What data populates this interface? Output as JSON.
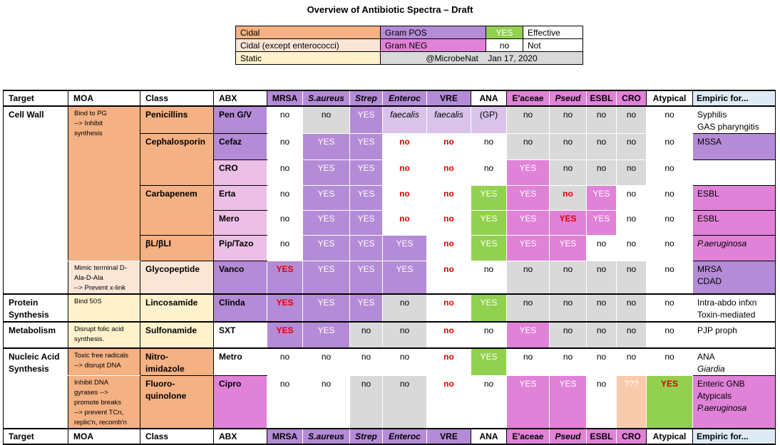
{
  "title": "Overview of Antibiotic Spectra – Draft",
  "colors": {
    "cidal": "#f4b183",
    "cidal_except_enterococci": "#fbe5d6",
    "static": "#fff2cc",
    "gram_pos": "#b48bd6",
    "gram_pos_light": "#d9c3ea",
    "gram_neg": "#e082d8",
    "gram_neg_light": "#ecbfe6",
    "effective": "#92d050",
    "grey": "#d9d9d9",
    "peach": "#f8cbad",
    "header_empiric": "#deebf7",
    "red_text": "#e00000"
  },
  "legend": {
    "cidal": "Cidal",
    "cidal_except": "Cidal (except enterococci)",
    "static": "Static",
    "gram_pos": "Gram POS",
    "gram_neg": "Gram NEG",
    "yes": "YES",
    "effective": "Effective",
    "no": "no",
    "not": "Not",
    "handle": "@MicrobeNat",
    "date": "Jan 17, 2020"
  },
  "headers": [
    {
      "label": "Target",
      "cls": "l"
    },
    {
      "label": "MOA",
      "cls": "l"
    },
    {
      "label": "Class",
      "cls": "l"
    },
    {
      "label": "ABX",
      "cls": "l"
    },
    {
      "label": "MRSA",
      "cls": "ctr",
      "bg": "gram_pos"
    },
    {
      "label": "S.aureus",
      "cls": "ctr it",
      "bg": "gram_pos"
    },
    {
      "label": "Strep",
      "cls": "ctr it",
      "bg": "gram_pos"
    },
    {
      "label": "Enteroc",
      "cls": "ctr it",
      "bg": "gram_pos"
    },
    {
      "label": "VRE",
      "cls": "ctr",
      "bg": "gram_pos"
    },
    {
      "label": "ANA",
      "cls": "ctr"
    },
    {
      "label": "E'aceae",
      "cls": "ctr",
      "bg": "gram_neg"
    },
    {
      "label": "Pseud",
      "cls": "ctr it",
      "bg": "gram_neg"
    },
    {
      "label": "ESBL",
      "cls": "ctr",
      "bg": "gram_neg"
    },
    {
      "label": "CRO",
      "cls": "ctr",
      "bg": "gram_neg"
    },
    {
      "label": "Atypical",
      "cls": "ctr"
    },
    {
      "label": "Empiric for...",
      "cls": "l last"
    }
  ],
  "targets": {
    "cell_wall": [
      "Cell Wall"
    ],
    "protein": [
      "Protein",
      "Synthesis"
    ],
    "metabolism": [
      "Metabolism"
    ],
    "nucleic": [
      "Nucleic Acid",
      "Synthesis"
    ]
  },
  "moa": {
    "bind_pg": [
      "Bind to PG",
      "--> Inhibit",
      "synthesis"
    ],
    "mimic": [
      "Mimic terminal D-",
      "Ala-D-Ala",
      "--> Prevent x-link"
    ],
    "bind_50s": [
      "Bind 50S"
    ],
    "folic": [
      "Disrupt folic acid",
      "synthesis."
    ],
    "toxic": [
      "Toxic free radicals",
      "--> disrupt DNA"
    ],
    "gyrase": [
      "Inhibit DNA",
      "gyrases -->",
      "promote breaks",
      "--> prevent TCn,",
      "replic'n, recomb'n"
    ]
  },
  "classes": {
    "penicillins": [
      "Penicillins"
    ],
    "cephalosporin": [
      "Cephalosporin"
    ],
    "carbapenem": [
      "Carbapenem"
    ],
    "bl_bli": [
      "βL/βLI"
    ],
    "glycopeptide": [
      "Glycopeptide"
    ],
    "lincosamide": [
      "Lincosamide"
    ],
    "sulfonamide": [
      "Sulfonamide"
    ],
    "nitroimidazole": [
      "Nitro-",
      "imidazole"
    ],
    "fluoroquinolone": [
      "Fluoro-",
      "quinolone"
    ]
  },
  "rows": [
    {
      "abx": "Pen G/V",
      "abx_bg": "gram_pos",
      "cells": [
        [
          "no",
          "white"
        ],
        [
          "no",
          "grey"
        ],
        [
          "YES",
          "gram_pos"
        ],
        [
          "faecalis",
          "gram_pos_light",
          "it"
        ],
        [
          "faecalis",
          "gram_pos_light",
          "it"
        ],
        [
          "(GP)",
          "gram_pos_light"
        ],
        [
          "no",
          "grey"
        ],
        [
          "no",
          "grey"
        ],
        [
          "no",
          "grey"
        ],
        [
          "no",
          "grey"
        ],
        [
          "no",
          "white"
        ]
      ],
      "empiric": [
        [
          "Syphilis"
        ],
        [
          "GAS pharyngitis"
        ]
      ],
      "emp_bg": "white"
    },
    {
      "abx": "Cefaz",
      "abx_bg": "gram_pos",
      "cells": [
        [
          "no",
          "white"
        ],
        [
          "YES",
          "gram_pos"
        ],
        [
          "YES",
          "gram_pos"
        ],
        [
          "no",
          "white",
          "red"
        ],
        [
          "no",
          "white",
          "red"
        ],
        [
          "no",
          "white"
        ],
        [
          "no",
          "grey"
        ],
        [
          "no",
          "grey"
        ],
        [
          "no",
          "grey"
        ],
        [
          "no",
          "grey"
        ],
        [
          "no",
          "white"
        ]
      ],
      "empiric": [
        [
          "MSSA"
        ]
      ],
      "emp_bg": "gram_pos"
    },
    {
      "abx": "CRO",
      "abx_bg": "gram_neg_light",
      "cells": [
        [
          "no",
          "white"
        ],
        [
          "YES",
          "gram_pos"
        ],
        [
          "YES",
          "gram_pos"
        ],
        [
          "no",
          "white",
          "red"
        ],
        [
          "no",
          "white",
          "red"
        ],
        [
          "no",
          "white"
        ],
        [
          "YES",
          "gram_neg"
        ],
        [
          "no",
          "grey"
        ],
        [
          "no",
          "grey"
        ],
        [
          "no",
          "grey"
        ],
        [
          "no",
          "white"
        ]
      ],
      "empiric": [],
      "emp_bg": "white"
    },
    {
      "abx": "Erta",
      "abx_bg": "gram_neg_light",
      "cells": [
        [
          "no",
          "white"
        ],
        [
          "YES",
          "gram_pos"
        ],
        [
          "YES",
          "gram_pos"
        ],
        [
          "no",
          "white",
          "red"
        ],
        [
          "no",
          "white",
          "red"
        ],
        [
          "YES",
          "effective"
        ],
        [
          "YES",
          "gram_neg"
        ],
        [
          "no",
          "grey",
          "red"
        ],
        [
          "YES",
          "gram_neg"
        ],
        [
          "no",
          "white"
        ],
        [
          "no",
          "white"
        ]
      ],
      "empiric": [
        [
          "ESBL"
        ]
      ],
      "emp_bg": "gram_neg"
    },
    {
      "abx": "Mero",
      "abx_bg": "gram_neg_light",
      "cells": [
        [
          "no",
          "white"
        ],
        [
          "YES",
          "gram_pos"
        ],
        [
          "YES",
          "gram_pos"
        ],
        [
          "no",
          "white",
          "red"
        ],
        [
          "no",
          "white",
          "red"
        ],
        [
          "YES",
          "effective"
        ],
        [
          "YES",
          "gram_neg"
        ],
        [
          "YES",
          "gram_neg",
          "red"
        ],
        [
          "YES",
          "gram_neg"
        ],
        [
          "no",
          "white"
        ],
        [
          "no",
          "white"
        ]
      ],
      "empiric": [
        [
          "ESBL"
        ]
      ],
      "emp_bg": "gram_neg"
    },
    {
      "abx": "Pip/Tazo",
      "abx_bg": "gram_neg_light",
      "cells": [
        [
          "no",
          "white"
        ],
        [
          "YES",
          "gram_pos"
        ],
        [
          "YES",
          "gram_pos"
        ],
        [
          "YES",
          "gram_pos"
        ],
        [
          "no",
          "white",
          "red"
        ],
        [
          "YES",
          "effective"
        ],
        [
          "YES",
          "gram_neg"
        ],
        [
          "YES",
          "gram_neg"
        ],
        [
          "no",
          "white"
        ],
        [
          "no",
          "white"
        ],
        [
          "no",
          "white"
        ]
      ],
      "empiric": [
        [
          "P.aeruginosa",
          "it"
        ]
      ],
      "emp_bg": "gram_neg"
    },
    {
      "abx": "Vanco",
      "abx_bg": "gram_pos",
      "cells": [
        [
          "YES",
          "gram_pos",
          "red"
        ],
        [
          "YES",
          "gram_pos"
        ],
        [
          "YES",
          "gram_pos"
        ],
        [
          "YES",
          "gram_pos"
        ],
        [
          "no",
          "white",
          "red"
        ],
        [
          "no",
          "white"
        ],
        [
          "no",
          "grey"
        ],
        [
          "no",
          "grey"
        ],
        [
          "no",
          "grey"
        ],
        [
          "no",
          "grey"
        ],
        [
          "no",
          "white"
        ]
      ],
      "empiric": [
        [
          "MRSA"
        ],
        [
          "CDAD"
        ]
      ],
      "emp_bg": "gram_pos"
    },
    {
      "abx": "Clinda",
      "abx_bg": "gram_pos",
      "cells": [
        [
          "YES",
          "gram_pos",
          "red"
        ],
        [
          "YES",
          "gram_pos"
        ],
        [
          "YES",
          "gram_pos"
        ],
        [
          "no",
          "grey"
        ],
        [
          "no",
          "white",
          "red"
        ],
        [
          "YES",
          "effective"
        ],
        [
          "no",
          "grey"
        ],
        [
          "no",
          "grey"
        ],
        [
          "no",
          "grey"
        ],
        [
          "no",
          "grey"
        ],
        [
          "no",
          "white"
        ]
      ],
      "empiric": [
        [
          "Intra-abdo infxn"
        ],
        [
          "Toxin-mediated"
        ]
      ],
      "emp_bg": "white"
    },
    {
      "abx": "SXT",
      "abx_bg": "white",
      "cells": [
        [
          "YES",
          "gram_pos",
          "red"
        ],
        [
          "YES",
          "gram_pos"
        ],
        [
          "no",
          "grey"
        ],
        [
          "no",
          "grey"
        ],
        [
          "no",
          "white",
          "red"
        ],
        [
          "no",
          "white"
        ],
        [
          "YES",
          "gram_neg"
        ],
        [
          "no",
          "grey"
        ],
        [
          "no",
          "grey"
        ],
        [
          "no",
          "grey"
        ],
        [
          "no",
          "white"
        ]
      ],
      "empiric": [
        [
          "PJP proph"
        ]
      ],
      "emp_bg": "white"
    },
    {
      "abx": "Metro",
      "abx_bg": "white",
      "cells": [
        [
          "no",
          "white"
        ],
        [
          "no",
          "white"
        ],
        [
          "no",
          "white"
        ],
        [
          "no",
          "white"
        ],
        [
          "no",
          "white",
          "red"
        ],
        [
          "YES",
          "effective"
        ],
        [
          "no",
          "white"
        ],
        [
          "no",
          "white"
        ],
        [
          "no",
          "white"
        ],
        [
          "no",
          "white"
        ],
        [
          "no",
          "white"
        ]
      ],
      "empiric": [
        [
          "ANA"
        ],
        [
          "Giardia",
          "it"
        ]
      ],
      "emp_bg": "white"
    },
    {
      "abx": "Cipro",
      "abx_bg": "gram_neg",
      "cells": [
        [
          "no",
          "white"
        ],
        [
          "no",
          "white"
        ],
        [
          "no",
          "grey"
        ],
        [
          "no",
          "grey"
        ],
        [
          "no",
          "white",
          "red"
        ],
        [
          "no",
          "white"
        ],
        [
          "YES",
          "gram_neg"
        ],
        [
          "YES",
          "gram_neg"
        ],
        [
          "no",
          "white"
        ],
        [
          "???",
          "peach"
        ],
        [
          "YES",
          "effective",
          "red"
        ]
      ],
      "empiric": [
        [
          "Enteric GNB"
        ],
        [
          "Atypicals"
        ],
        [
          "P.aeruginosa",
          "it"
        ]
      ],
      "emp_bg": "gram_neg"
    }
  ]
}
